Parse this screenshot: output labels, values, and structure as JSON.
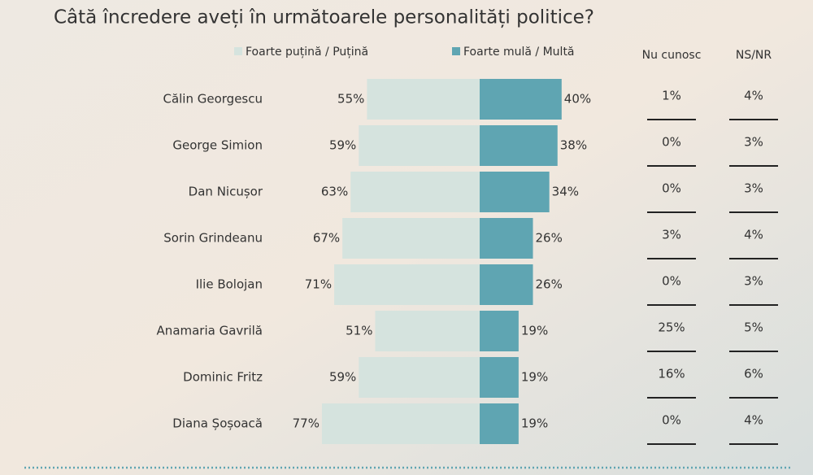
{
  "chart_data": {
    "type": "diverging-bar",
    "title": "Câtă încredere aveți în următoarele personalități politice?",
    "categories": [
      "Călin Georgescu",
      "George Simion",
      "Dan Nicușor",
      "Sorin Grindeanu",
      "Ilie Bolojan",
      "Anamaria Gavrilă",
      "Dominic Fritz",
      "Diana Șoșoacă"
    ],
    "series": [
      {
        "name": "Foarte puțină / Puțină",
        "color": "#d5e3de",
        "side": "left",
        "values": [
          55,
          59,
          63,
          67,
          71,
          51,
          59,
          77
        ],
        "value_labels": [
          "55%",
          "59%",
          "63%",
          "67%",
          "71%",
          "51%",
          "59%",
          "77%"
        ]
      },
      {
        "name": "Foarte mulă / Multă",
        "color": "#5fa5b2",
        "side": "right",
        "values": [
          40,
          38,
          34,
          26,
          26,
          19,
          19,
          19
        ],
        "value_labels": [
          "40%",
          "38%",
          "34%",
          "26%",
          "26%",
          "19%",
          "19%",
          "19%"
        ]
      }
    ],
    "columns": [
      {
        "name": "Nu cunosc",
        "values": [
          1,
          0,
          0,
          3,
          0,
          25,
          16,
          0
        ],
        "value_labels": [
          "1%",
          "0%",
          "0%",
          "3%",
          "0%",
          "25%",
          "16%",
          "0%"
        ]
      },
      {
        "name": "NS/NR",
        "values": [
          4,
          3,
          3,
          4,
          3,
          5,
          6,
          4
        ],
        "value_labels": [
          "4%",
          "3%",
          "3%",
          "4%",
          "3%",
          "5%",
          "6%",
          "4%"
        ]
      }
    ]
  }
}
